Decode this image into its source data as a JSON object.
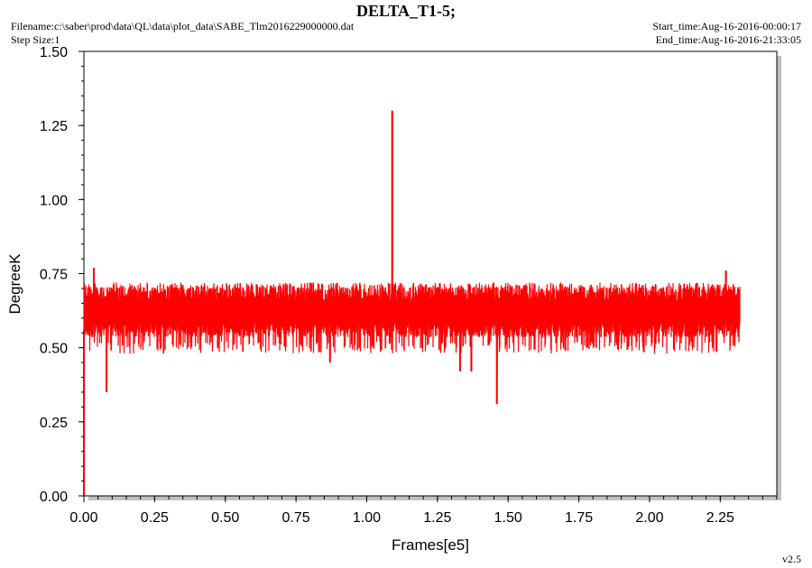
{
  "header": {
    "title": "DELTA_T1-5;",
    "filename": "Filename:c:\\saber\\prod\\data\\QL\\data\\plot_data\\SABE_Tlm2016229000000.dat",
    "step_size": "Step Size:1",
    "start_time": "Start_time:Aug-16-2016-00:00:17",
    "end_time": "End_time:Aug-16-2016-21:33:05"
  },
  "footer": {
    "version": "v2.5"
  },
  "colors": {
    "series": "#ff0000",
    "axis": "#000000",
    "background": "#ffffff"
  },
  "chart_data": {
    "type": "line",
    "title": "DELTA_T1-5;",
    "xlabel": "Frames[e5]",
    "ylabel": "DegreeK",
    "xlim": [
      0,
      2.45
    ],
    "ylim": [
      0,
      1.5
    ],
    "x_tick_labels": [
      "0.00",
      "0.25",
      "0.50",
      "0.75",
      "1.00",
      "1.25",
      "1.50",
      "1.75",
      "2.00",
      "2.25"
    ],
    "y_tick_labels": [
      "0.00",
      "0.25",
      "0.50",
      "0.75",
      "1.00",
      "1.25",
      "1.50"
    ],
    "grid": false,
    "series": [
      {
        "color": "#ff0000",
        "x_range": [
          0,
          2.32
        ],
        "typical_band": [
          0.56,
          0.68
        ],
        "min_band": [
          0.48,
          0.52
        ],
        "max_band": [
          0.7,
          0.72
        ],
        "spikes": [
          {
            "x": 0.0,
            "y": 0.0
          },
          {
            "x": 0.035,
            "y": 0.77
          },
          {
            "x": 0.08,
            "y": 0.35
          },
          {
            "x": 0.87,
            "y": 0.45
          },
          {
            "x": 1.09,
            "y": 1.3
          },
          {
            "x": 1.33,
            "y": 0.42
          },
          {
            "x": 1.37,
            "y": 0.42
          },
          {
            "x": 1.46,
            "y": 0.31
          },
          {
            "x": 2.27,
            "y": 0.76
          }
        ]
      }
    ]
  }
}
